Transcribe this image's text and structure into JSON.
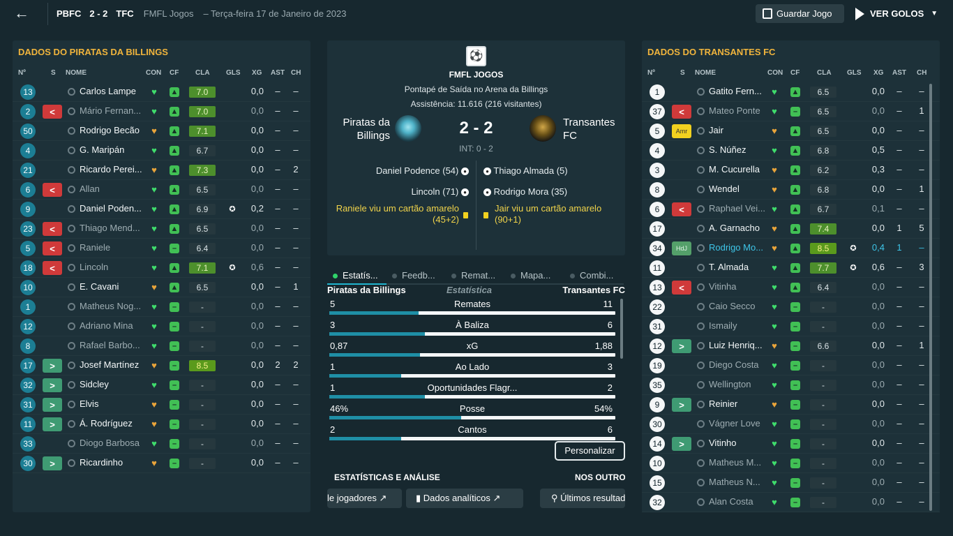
{
  "header": {
    "home_abbr": "PBFC",
    "score": "2 - 2",
    "away_abbr": "TFC",
    "competition": "FMFL Jogos",
    "date": "–   Terça-feira 17 de Janeiro de 2023",
    "save_label": "Guardar Jogo",
    "goals_label": "VER GOLOS"
  },
  "columns": {
    "num": "Nº",
    "s": "S",
    "name": "NOME",
    "con": "CON",
    "cf": "CF",
    "cla": "CLA",
    "gls": "GLS",
    "xg": "XG",
    "ast": "AST",
    "ch": "CH"
  },
  "home": {
    "title": "DADOS DO PIRATAS DA BILLINGS",
    "players": [
      {
        "num": "13",
        "st": "",
        "name": "Carlos Lampe",
        "cla": "7.0",
        "cg": "g",
        "gl": "",
        "xg": "0,0",
        "ast": "–",
        "ch": "–",
        "dim": false,
        "cf": "👍"
      },
      {
        "num": "2",
        "st": "out",
        "name": "Mário Fernan...",
        "cla": "7.0",
        "cg": "g",
        "gl": "",
        "xg": "0,0",
        "ast": "–",
        "ch": "–",
        "dim": true,
        "cf": "👍"
      },
      {
        "num": "50",
        "st": "",
        "name": "Rodrigo Becão",
        "cla": "7.1",
        "cg": "g",
        "gl": "",
        "xg": "0,0",
        "ast": "–",
        "ch": "–",
        "dim": false,
        "cf": "👍"
      },
      {
        "num": "4",
        "st": "",
        "name": "G. Maripán",
        "cla": "6.7",
        "cg": "",
        "gl": "",
        "xg": "0,0",
        "ast": "–",
        "ch": "–",
        "dim": false,
        "cf": "👍"
      },
      {
        "num": "21",
        "st": "",
        "name": "Ricardo Perei...",
        "cla": "7.3",
        "cg": "g",
        "gl": "",
        "xg": "0,0",
        "ast": "–",
        "ch": "2",
        "dim": false,
        "cf": "👍"
      },
      {
        "num": "6",
        "st": "out",
        "name": "Allan",
        "cla": "6.5",
        "cg": "",
        "gl": "",
        "xg": "0,0",
        "ast": "–",
        "ch": "–",
        "dim": true,
        "cf": "👍"
      },
      {
        "num": "9",
        "st": "",
        "name": "Daniel Poden...",
        "cla": "6.9",
        "cg": "",
        "gl": "⚽",
        "xg": "0,2",
        "ast": "–",
        "ch": "–",
        "dim": false,
        "cf": "👍"
      },
      {
        "num": "23",
        "st": "out",
        "name": "Thiago Mend...",
        "cla": "6.5",
        "cg": "",
        "gl": "",
        "xg": "0,0",
        "ast": "–",
        "ch": "–",
        "dim": true,
        "cf": "👍"
      },
      {
        "num": "5",
        "st": "out",
        "name": "Raniele",
        "cla": "6.4",
        "cg": "",
        "gl": "",
        "xg": "0,0",
        "ast": "–",
        "ch": "–",
        "dim": true,
        "cf": "–"
      },
      {
        "num": "18",
        "st": "out",
        "name": "Lincoln",
        "cla": "7.1",
        "cg": "g",
        "gl": "⚽",
        "xg": "0,6",
        "ast": "–",
        "ch": "–",
        "dim": true,
        "cf": "👍"
      },
      {
        "num": "10",
        "st": "",
        "name": "E. Cavani",
        "cla": "6.5",
        "cg": "",
        "gl": "",
        "xg": "0,0",
        "ast": "–",
        "ch": "1",
        "dim": false,
        "cf": "👍"
      },
      {
        "num": "1",
        "st": "",
        "name": "Matheus Nog...",
        "cla": "-",
        "cg": "",
        "gl": "",
        "xg": "0,0",
        "ast": "–",
        "ch": "–",
        "dim": true,
        "cf": "–"
      },
      {
        "num": "12",
        "st": "",
        "name": "Adriano Mina",
        "cla": "-",
        "cg": "",
        "gl": "",
        "xg": "0,0",
        "ast": "–",
        "ch": "–",
        "dim": true,
        "cf": "–"
      },
      {
        "num": "8",
        "st": "",
        "name": "Rafael Barbo...",
        "cla": "-",
        "cg": "",
        "gl": "",
        "xg": "0,0",
        "ast": "–",
        "ch": "–",
        "dim": true,
        "cf": "–"
      },
      {
        "num": "17",
        "st": "in",
        "name": "Josef Martínez",
        "cla": "8.5",
        "cg": "y",
        "gl": "",
        "xg": "0,0",
        "ast": "2",
        "ch": "2",
        "dim": false,
        "cf": "–"
      },
      {
        "num": "32",
        "st": "in",
        "name": "Sidcley",
        "cla": "-",
        "cg": "",
        "gl": "",
        "xg": "0,0",
        "ast": "–",
        "ch": "–",
        "dim": false,
        "cf": "–"
      },
      {
        "num": "31",
        "st": "in",
        "name": "Elvis",
        "cla": "-",
        "cg": "",
        "gl": "",
        "xg": "0,0",
        "ast": "–",
        "ch": "–",
        "dim": false,
        "cf": "–"
      },
      {
        "num": "11",
        "st": "in",
        "name": "Á. Rodríguez",
        "cla": "-",
        "cg": "",
        "gl": "",
        "xg": "0,0",
        "ast": "–",
        "ch": "–",
        "dim": false,
        "cf": "–"
      },
      {
        "num": "33",
        "st": "",
        "name": "Diogo Barbosa",
        "cla": "-",
        "cg": "",
        "gl": "",
        "xg": "0,0",
        "ast": "–",
        "ch": "–",
        "dim": true,
        "cf": "–"
      },
      {
        "num": "30",
        "st": "in",
        "name": "Ricardinho",
        "cla": "-",
        "cg": "",
        "gl": "",
        "xg": "0,0",
        "ast": "–",
        "ch": "–",
        "dim": false,
        "cf": "–"
      }
    ]
  },
  "away": {
    "title": "DADOS DO TRANSANTES FC",
    "players": [
      {
        "num": "1",
        "st": "",
        "name": "Gatito Fern...",
        "cla": "6.5",
        "cg": "",
        "gl": "",
        "xg": "0,0",
        "ast": "–",
        "ch": "–",
        "dim": false,
        "cf": "👍"
      },
      {
        "num": "37",
        "st": "out",
        "name": "Mateo Ponte",
        "cla": "6.5",
        "cg": "",
        "gl": "",
        "xg": "0,0",
        "ast": "–",
        "ch": "1",
        "dim": true,
        "cf": "–"
      },
      {
        "num": "5",
        "st": "amr",
        "name": "Jair",
        "cla": "6.5",
        "cg": "",
        "gl": "",
        "xg": "0,0",
        "ast": "–",
        "ch": "–",
        "dim": false,
        "cf": "👍"
      },
      {
        "num": "4",
        "st": "",
        "name": "S. Núñez",
        "cla": "6.8",
        "cg": "",
        "gl": "",
        "xg": "0,5",
        "ast": "–",
        "ch": "–",
        "dim": false,
        "cf": "👍"
      },
      {
        "num": "3",
        "st": "",
        "name": "M. Cucurella",
        "cla": "6.2",
        "cg": "",
        "gl": "",
        "xg": "0,3",
        "ast": "–",
        "ch": "–",
        "dim": false,
        "cf": "👍"
      },
      {
        "num": "8",
        "st": "",
        "name": "Wendel",
        "cla": "6.8",
        "cg": "",
        "gl": "",
        "xg": "0,0",
        "ast": "–",
        "ch": "1",
        "dim": false,
        "cf": "👍"
      },
      {
        "num": "6",
        "st": "out",
        "name": "Raphael Vei...",
        "cla": "6.7",
        "cg": "",
        "gl": "",
        "xg": "0,1",
        "ast": "–",
        "ch": "–",
        "dim": true,
        "cf": "👍"
      },
      {
        "num": "17",
        "st": "",
        "name": "A. Garnacho",
        "cla": "7.4",
        "cg": "g",
        "gl": "",
        "xg": "0,0",
        "ast": "1",
        "ch": "5",
        "dim": false,
        "cf": "👍"
      },
      {
        "num": "34",
        "st": "hdj",
        "name": "Rodrigo Mo...",
        "cla": "8.5",
        "cg": "y",
        "gl": "⚽",
        "xg": "0,4",
        "ast": "1",
        "ch": "–",
        "dim": false,
        "hl": true,
        "cf": "👍"
      },
      {
        "num": "11",
        "st": "",
        "name": "T. Almada",
        "cla": "7.7",
        "cg": "g",
        "gl": "⚽",
        "xg": "0,6",
        "ast": "–",
        "ch": "3",
        "dim": false,
        "cf": "👍"
      },
      {
        "num": "13",
        "st": "out",
        "name": "Vitinha",
        "cla": "6.4",
        "cg": "",
        "gl": "",
        "xg": "0,0",
        "ast": "–",
        "ch": "–",
        "dim": true,
        "cf": "👍"
      },
      {
        "num": "22",
        "st": "",
        "name": "Caio Secco",
        "cla": "-",
        "cg": "",
        "gl": "",
        "xg": "0,0",
        "ast": "–",
        "ch": "–",
        "dim": true,
        "cf": "–"
      },
      {
        "num": "31",
        "st": "",
        "name": "Ismaily",
        "cla": "-",
        "cg": "",
        "gl": "",
        "xg": "0,0",
        "ast": "–",
        "ch": "–",
        "dim": true,
        "cf": "–"
      },
      {
        "num": "12",
        "st": "in",
        "name": "Luiz Henriq...",
        "cla": "6.6",
        "cg": "",
        "gl": "",
        "xg": "0,0",
        "ast": "–",
        "ch": "1",
        "dim": false,
        "cf": "–"
      },
      {
        "num": "19",
        "st": "",
        "name": "Diego Costa",
        "cla": "-",
        "cg": "",
        "gl": "",
        "xg": "0,0",
        "ast": "–",
        "ch": "–",
        "dim": true,
        "cf": "–"
      },
      {
        "num": "35",
        "st": "",
        "name": "Wellington",
        "cla": "-",
        "cg": "",
        "gl": "",
        "xg": "0,0",
        "ast": "–",
        "ch": "–",
        "dim": true,
        "cf": "–"
      },
      {
        "num": "9",
        "st": "in",
        "name": "Reinier",
        "cla": "-",
        "cg": "",
        "gl": "",
        "xg": "0,0",
        "ast": "–",
        "ch": "–",
        "dim": false,
        "cf": "–"
      },
      {
        "num": "30",
        "st": "",
        "name": "Vágner Love",
        "cla": "-",
        "cg": "",
        "gl": "",
        "xg": "0,0",
        "ast": "–",
        "ch": "–",
        "dim": true,
        "cf": "–"
      },
      {
        "num": "14",
        "st": "in",
        "name": "Vitinho",
        "cla": "-",
        "cg": "",
        "gl": "",
        "xg": "0,0",
        "ast": "–",
        "ch": "–",
        "dim": false,
        "cf": "–"
      },
      {
        "num": "10",
        "st": "",
        "name": "Matheus M...",
        "cla": "-",
        "cg": "",
        "gl": "",
        "xg": "0,0",
        "ast": "–",
        "ch": "–",
        "dim": true,
        "cf": "–"
      },
      {
        "num": "15",
        "st": "",
        "name": "Matheus N...",
        "cla": "-",
        "cg": "",
        "gl": "",
        "xg": "0,0",
        "ast": "–",
        "ch": "–",
        "dim": true,
        "cf": "–"
      },
      {
        "num": "32",
        "st": "",
        "name": "Alan Costa",
        "cla": "-",
        "cg": "",
        "gl": "",
        "xg": "0,0",
        "ast": "–",
        "ch": "–",
        "dim": true,
        "cf": "–"
      }
    ]
  },
  "match": {
    "competition": "FMFL JOGOS",
    "kickoff": "Pontapé de Saída no Arena da Billings",
    "attendance": "Assistência: 11.616 (216 visitantes)",
    "home_name": "Piratas da Billings",
    "away_name": "Transantes FC",
    "score": "2 - 2",
    "halftime": "INT: 0 - 2",
    "home_events": [
      "Daniel Podence (54)",
      "Lincoln (71)",
      "Raniele viu um cartão amarelo (45+2)"
    ],
    "away_events": [
      "Thiago Almada (5)",
      "Rodrigo Mora (35)",
      "Jair viu um cartão amarelo (90+1)"
    ]
  },
  "tabs": [
    "Estatís...",
    "Feedb...",
    "Remat...",
    "Mapa...",
    "Combi..."
  ],
  "stats": {
    "home_label": "Piratas da Billings",
    "center_label": "Estatística",
    "away_label": "Transantes FC",
    "rows": [
      {
        "name": "Remates",
        "home": "5",
        "away": "11",
        "share": 0.3125
      },
      {
        "name": "À Baliza",
        "home": "3",
        "away": "6",
        "share": 0.333
      },
      {
        "name": "xG",
        "home": "0,87",
        "away": "1,88",
        "share": 0.316
      },
      {
        "name": "Ao Lado",
        "home": "1",
        "away": "3",
        "share": 0.25
      },
      {
        "name": "Oportunidades Flagr...",
        "home": "1",
        "away": "2",
        "share": 0.333
      },
      {
        "name": "Posse",
        "home": "46%",
        "away": "54%",
        "share": 0.46
      },
      {
        "name": "Cantos",
        "home": "2",
        "away": "6",
        "share": 0.25
      }
    ],
    "customize": "Personalizar"
  },
  "bottom": {
    "section_left": "ESTATÍSTICAS E ANÁLISE",
    "section_right": "NOS OUTROS",
    "btn1": "le jogadores",
    "btn2": "Dados analíticos",
    "btn3": "Últimos resultados"
  }
}
